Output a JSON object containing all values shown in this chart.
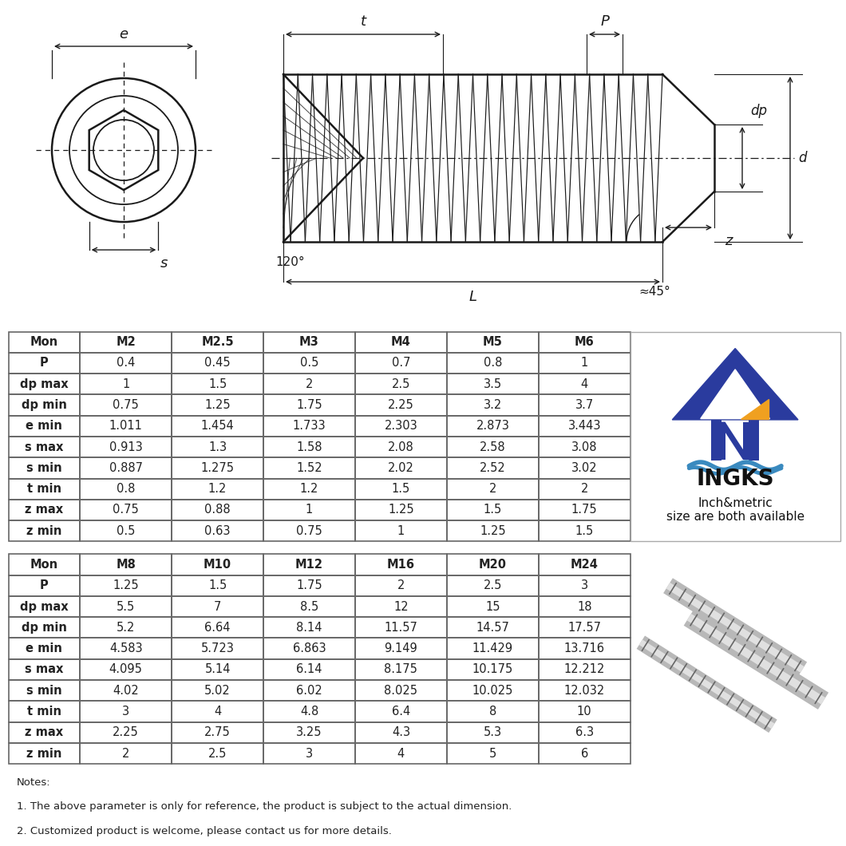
{
  "table1_headers": [
    "Mon",
    "M2",
    "M2.5",
    "M3",
    "M4",
    "M5",
    "M6"
  ],
  "table1_rows": [
    [
      "P",
      "0.4",
      "0.45",
      "0.5",
      "0.7",
      "0.8",
      "1"
    ],
    [
      "dp max",
      "1",
      "1.5",
      "2",
      "2.5",
      "3.5",
      "4"
    ],
    [
      "dp min",
      "0.75",
      "1.25",
      "1.75",
      "2.25",
      "3.2",
      "3.7"
    ],
    [
      "e min",
      "1.011",
      "1.454",
      "1.733",
      "2.303",
      "2.873",
      "3.443"
    ],
    [
      "s max",
      "0.913",
      "1.3",
      "1.58",
      "2.08",
      "2.58",
      "3.08"
    ],
    [
      "s min",
      "0.887",
      "1.275",
      "1.52",
      "2.02",
      "2.52",
      "3.02"
    ],
    [
      "t min",
      "0.8",
      "1.2",
      "1.2",
      "1.5",
      "2",
      "2"
    ],
    [
      "z max",
      "0.75",
      "0.88",
      "1",
      "1.25",
      "1.5",
      "1.75"
    ],
    [
      "z min",
      "0.5",
      "0.63",
      "0.75",
      "1",
      "1.25",
      "1.5"
    ]
  ],
  "table2_headers": [
    "Mon",
    "M8",
    "M10",
    "M12",
    "M16",
    "M20",
    "M24"
  ],
  "table2_rows": [
    [
      "P",
      "1.25",
      "1.5",
      "1.75",
      "2",
      "2.5",
      "3"
    ],
    [
      "dp max",
      "5.5",
      "7",
      "8.5",
      "12",
      "15",
      "18"
    ],
    [
      "dp min",
      "5.2",
      "6.64",
      "8.14",
      "11.57",
      "14.57",
      "17.57"
    ],
    [
      "e min",
      "4.583",
      "5.723",
      "6.863",
      "9.149",
      "11.429",
      "13.716"
    ],
    [
      "s max",
      "4.095",
      "5.14",
      "6.14",
      "8.175",
      "10.175",
      "12.212"
    ],
    [
      "s min",
      "4.02",
      "5.02",
      "6.02",
      "8.025",
      "10.025",
      "12.032"
    ],
    [
      "t min",
      "3",
      "4",
      "4.8",
      "6.4",
      "8",
      "10"
    ],
    [
      "z max",
      "2.25",
      "2.75",
      "3.25",
      "4.3",
      "5.3",
      "6.3"
    ],
    [
      "z min",
      "2",
      "2.5",
      "3",
      "4",
      "5",
      "6"
    ]
  ],
  "notes": [
    "Notes:",
    "1. The above parameter is only for reference, the product is subject to the actual dimension.",
    "2. Customized product is welcome, please contact us for more details."
  ],
  "brand_name": "INGKS",
  "brand_slogan": "Inch&metric\nsize are both available",
  "bg_color": "#ffffff",
  "table_border_color": "#666666",
  "text_color": "#222222",
  "logo_blue": "#2a3b9e",
  "logo_orange": "#f0a020",
  "logo_wave": "#3a8abf"
}
